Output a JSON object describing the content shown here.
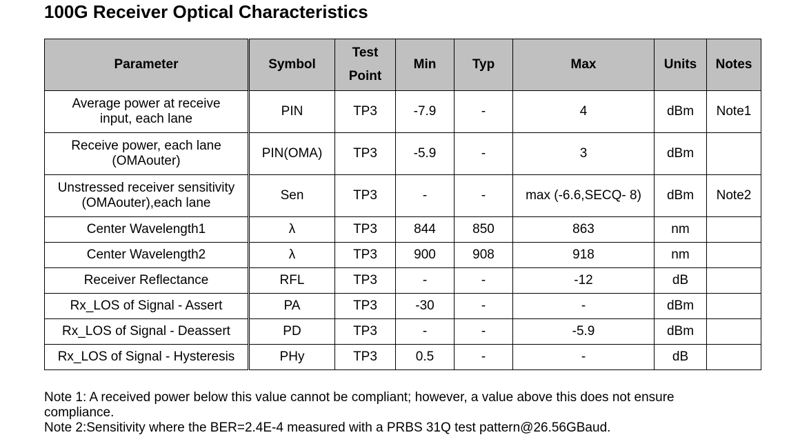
{
  "title": "100G Receiver Optical Characteristics",
  "table": {
    "headers": {
      "parameter": "Parameter",
      "symbol": "Symbol",
      "test_point_line1": "Test",
      "test_point_line2": "Point",
      "min": "Min",
      "typ": "Typ",
      "max": "Max",
      "units": "Units",
      "notes": "Notes"
    },
    "rows": [
      {
        "parameter_line1": "Average power at receive",
        "parameter_line2": "input, each lane",
        "symbol": "PIN",
        "test_point": "TP3",
        "min": "-7.9",
        "typ": "-",
        "max": "4",
        "units": "dBm",
        "notes": "Note1"
      },
      {
        "parameter_line1": "Receive power, each lane",
        "parameter_line2": "(OMAouter)",
        "symbol": "PIN(OMA)",
        "test_point": "TP3",
        "min": "-5.9",
        "typ": "-",
        "max": "3",
        "units": "dBm",
        "notes": ""
      },
      {
        "parameter_line1": "Unstressed receiver sensitivity",
        "parameter_line2": "(OMAouter),each lane",
        "symbol": "Sen",
        "test_point": "TP3",
        "min": "-",
        "typ": "-",
        "max": "max (-6.6,SECQ- 8)",
        "units": "dBm",
        "notes": "Note2"
      },
      {
        "parameter_line1": "Center Wavelength1",
        "parameter_line2": "",
        "symbol": "λ",
        "test_point": "TP3",
        "min": "844",
        "typ": "850",
        "max": "863",
        "units": "nm",
        "notes": ""
      },
      {
        "parameter_line1": "Center Wavelength2",
        "parameter_line2": "",
        "symbol": "λ",
        "test_point": "TP3",
        "min": "900",
        "typ": "908",
        "max": "918",
        "units": "nm",
        "notes": ""
      },
      {
        "parameter_line1": "Receiver Reflectance",
        "parameter_line2": "",
        "symbol": "RFL",
        "test_point": "TP3",
        "min": "-",
        "typ": "-",
        "max": "-12",
        "units": "dB",
        "notes": ""
      },
      {
        "parameter_line1": "Rx_LOS of Signal - Assert",
        "parameter_line2": "",
        "symbol": "PA",
        "test_point": "TP3",
        "min": "-30",
        "typ": "-",
        "max": "-",
        "units": "dBm",
        "notes": ""
      },
      {
        "parameter_line1": "Rx_LOS of Signal - Deassert",
        "parameter_line2": "",
        "symbol": "PD",
        "test_point": "TP3",
        "min": "-",
        "typ": "-",
        "max": "-5.9",
        "units": "dBm",
        "notes": ""
      },
      {
        "parameter_line1": "Rx_LOS of Signal - Hysteresis",
        "parameter_line2": "",
        "symbol": "PHy",
        "test_point": "TP3",
        "min": "0.5",
        "typ": "-",
        "max": "-",
        "units": "dB",
        "notes": ""
      }
    ]
  },
  "notes": {
    "note1_line1": "Note 1: A received power below this value cannot be compliant; however, a value above this does not ensure",
    "note1_line2": "compliance.",
    "note2": "Note 2:Sensitivity where the BER=2.4E-4 measured with a PRBS 31Q test pattern@26.56GBaud."
  },
  "colors": {
    "header_background": "#c0c0c0",
    "border": "#000000",
    "text": "#000000"
  }
}
